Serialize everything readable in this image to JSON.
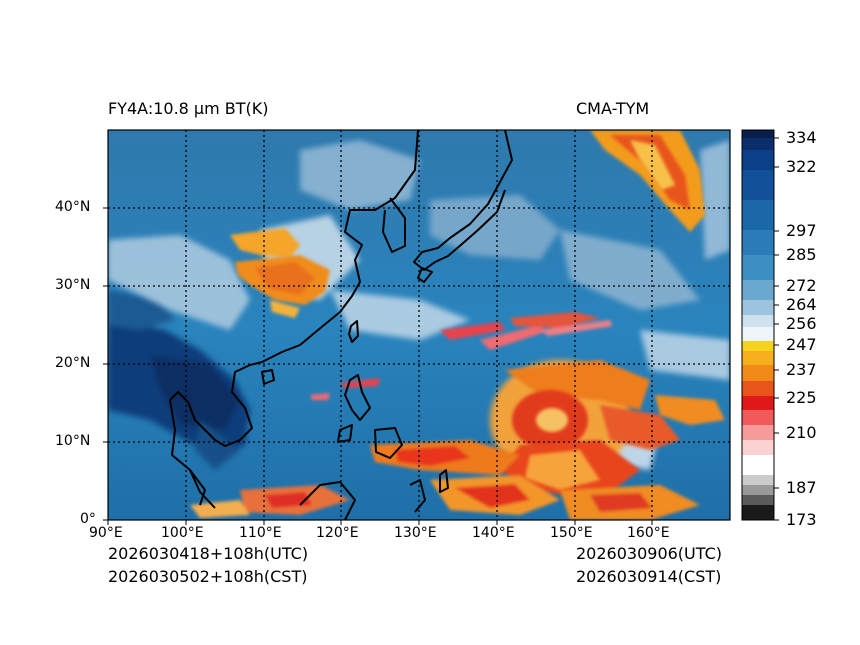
{
  "header": {
    "left_title": "FY4A:10.8 µm BT(K)",
    "right_title": "CMA-TYM"
  },
  "footer": {
    "init_utc": "2026030418+108h(UTC)",
    "init_cst": "2026030502+108h(CST)",
    "valid_utc": "2026030906(UTC)",
    "valid_cst": "2026030914(CST)"
  },
  "map": {
    "lon_range": [
      90,
      170
    ],
    "lat_range": [
      0,
      50
    ],
    "lon_ticks": [
      "90°E",
      "100°E",
      "110°E",
      "120°E",
      "130°E",
      "140°E",
      "150°E",
      "160°E"
    ],
    "lat_ticks": [
      "0°",
      "10°N",
      "20°N",
      "30°N",
      "40°N"
    ]
  },
  "colorbar": {
    "labels": [
      "334",
      "322",
      "297",
      "285",
      "272",
      "264",
      "256",
      "247",
      "237",
      "225",
      "210",
      "187",
      "173"
    ]
  },
  "colors": {
    "warm_dark": "#08306b",
    "ocean": "#2b7bb5",
    "cloud_white": "#e8eef4",
    "cold_orange": "#f39c1e",
    "cold_red": "#e41a1c"
  }
}
